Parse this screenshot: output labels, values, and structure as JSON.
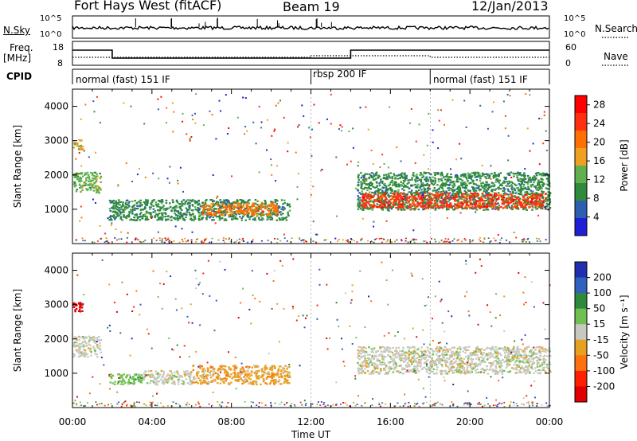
{
  "header": {
    "title": "Fort Hays West (fitACF)",
    "beam": "Beam 19",
    "date": "12/Jan/2013"
  },
  "nsky_panel": {
    "left_label": "N.Sky",
    "right_label": "N.Search",
    "left_ticks": [
      "10^5",
      "10^0"
    ],
    "right_ticks": [
      "10^5",
      "10^0"
    ]
  },
  "freq_panel": {
    "left_label": "Freq.",
    "left_unit": "[MHz]",
    "right_label": "Nave",
    "left_ticks": [
      "18",
      "8"
    ],
    "right_ticks": [
      "60",
      "0"
    ]
  },
  "cpid": {
    "label": "CPID",
    "segments": [
      {
        "start_h": 0,
        "end_h": 12,
        "name": "normal (fast) 151 IF"
      },
      {
        "start_h": 12,
        "end_h": 18,
        "name": "rbsp 200 IF"
      },
      {
        "start_h": 18,
        "end_h": 24,
        "name": "normal (fast) 151 IF"
      }
    ]
  },
  "colors": {
    "power_scale": [
      "#1f1fd8",
      "#2c5fb0",
      "#2f8a3c",
      "#60b050",
      "#f0a020",
      "#ff7000",
      "#ff3010",
      "#ff0000"
    ],
    "velocity_scale": [
      "#1f2fb0",
      "#3060c0",
      "#2e8a3a",
      "#70c050",
      "#c8c8c0",
      "#e8a020",
      "#ff7010",
      "#ff2000",
      "#e00000"
    ]
  },
  "chart_data": [
    {
      "type": "heatmap",
      "name": "power",
      "ylabel": "Slant Range [km]",
      "xlim_hours": [
        0,
        24
      ],
      "ylim": [
        0,
        4500
      ],
      "y_ticks": [
        "1000",
        "2000",
        "3000",
        "4000"
      ],
      "colorbar": {
        "label": "Power [dB]",
        "ticks": [
          "4",
          "8",
          "12",
          "16",
          "20",
          "24",
          "28"
        ],
        "range": [
          0,
          30
        ]
      },
      "echo_regions": [
        {
          "t0": 0.0,
          "t1": 1.4,
          "r0": 1500,
          "r1": 2100,
          "level": 3
        },
        {
          "t0": 0.0,
          "t1": 0.5,
          "r0": 2750,
          "r1": 3050,
          "level": 4
        },
        {
          "t0": 1.8,
          "t1": 10.9,
          "r0": 700,
          "r1": 1300,
          "level": 2
        },
        {
          "t0": 6.5,
          "t1": 10.3,
          "r0": 850,
          "r1": 1200,
          "level": 5
        },
        {
          "t0": 14.3,
          "t1": 24.0,
          "r0": 1000,
          "r1": 2100,
          "level": 2
        },
        {
          "t0": 14.5,
          "t1": 23.8,
          "r0": 1050,
          "r1": 1500,
          "level": 6
        }
      ]
    },
    {
      "type": "heatmap",
      "name": "velocity",
      "ylabel": "Slant Range [km]",
      "xlabel": "Time UT",
      "xlim_hours": [
        0,
        24
      ],
      "ylim": [
        0,
        4500
      ],
      "x_ticks": [
        "00:00",
        "04:00",
        "08:00",
        "12:00",
        "16:00",
        "20:00",
        "00:00"
      ],
      "y_ticks": [
        "1000",
        "2000",
        "3000",
        "4000"
      ],
      "colorbar": {
        "label": "Velocity [m s⁻¹]",
        "ticks": [
          "200",
          "100",
          "50",
          "15",
          "-15",
          "-50",
          "-100",
          "-200"
        ],
        "range": [
          -250,
          250
        ]
      },
      "echo_regions": [
        {
          "t0": 0.0,
          "t1": 0.6,
          "r0": 2800,
          "r1": 3100,
          "level": 8
        },
        {
          "t0": 0.0,
          "t1": 1.4,
          "r0": 1500,
          "r1": 2100,
          "level": 4
        },
        {
          "t0": 1.8,
          "t1": 3.5,
          "r0": 700,
          "r1": 1000,
          "level": 3
        },
        {
          "t0": 3.5,
          "t1": 6.0,
          "r0": 700,
          "r1": 1100,
          "level": 4
        },
        {
          "t0": 6.0,
          "t1": 10.9,
          "r0": 700,
          "r1": 1250,
          "level": 5
        },
        {
          "t0": 14.3,
          "t1": 24.0,
          "r0": 1000,
          "r1": 1800,
          "level": 4
        }
      ]
    }
  ]
}
